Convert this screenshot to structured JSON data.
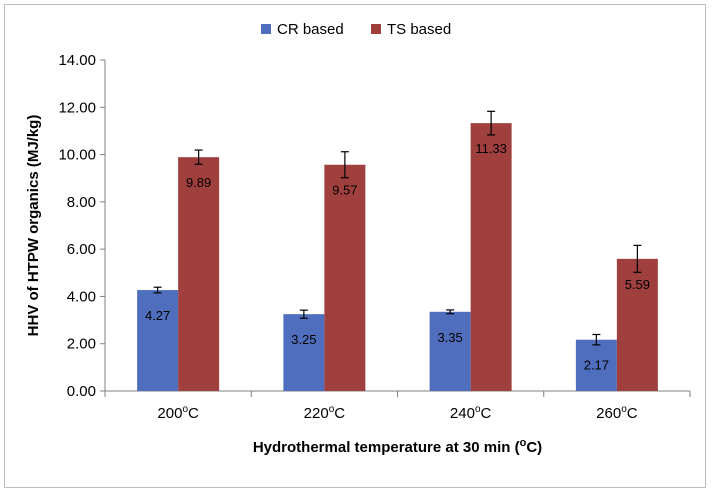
{
  "chart_data": {
    "type": "bar",
    "categories": [
      "200",
      "220",
      "240",
      "260"
    ],
    "category_unit_sup": "o",
    "category_unit_suffix": "C",
    "series": [
      {
        "name": "CR based",
        "color": "#4f6fbe",
        "values": [
          4.27,
          3.25,
          3.35,
          2.17
        ],
        "errors": [
          0.12,
          0.17,
          0.08,
          0.22
        ],
        "labels": [
          "4.27",
          "3.25",
          "3.35",
          "2.17"
        ]
      },
      {
        "name": "TS based",
        "color": "#a0403e",
        "values": [
          9.89,
          9.57,
          11.33,
          5.59
        ],
        "errors": [
          0.3,
          0.55,
          0.5,
          0.57
        ],
        "labels": [
          "9.89",
          "9.57",
          "11.33",
          "5.59"
        ]
      }
    ],
    "ylabel": "HHV of HTPW organics (MJ/kg)",
    "xlabel_main": "Hydrothermal temperature at 30 min (",
    "xlabel_sup": "o",
    "xlabel_end": "C)",
    "ylim": [
      0,
      14
    ],
    "yticks": [
      "0.00",
      "2.00",
      "4.00",
      "6.00",
      "8.00",
      "10.00",
      "12.00",
      "14.00"
    ],
    "grid": false,
    "legend_position": "top"
  }
}
